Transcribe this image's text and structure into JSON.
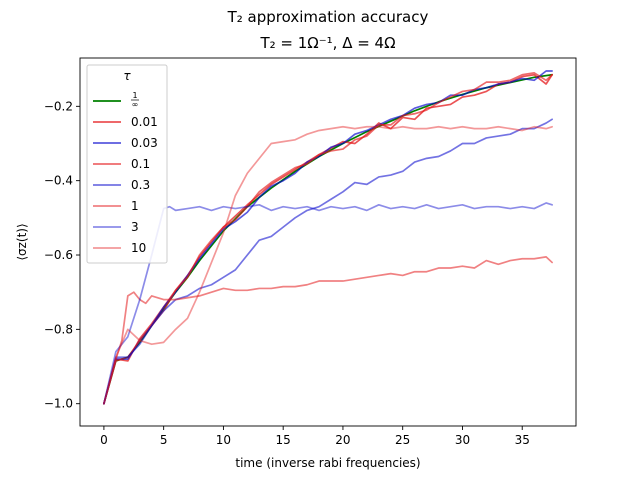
{
  "chart_data": {
    "type": "line",
    "title_line1": "T₂ approximation accuracy",
    "title_line2": "T₂ = 1Ω⁻¹, Δ = 4Ω",
    "xlabel": "time (inverse rabi frequencies)",
    "ylabel": "⟨σz(t)⟩",
    "xlim": [
      -2,
      39.5
    ],
    "ylim": [
      -1.06,
      -0.07
    ],
    "xticks": [
      0,
      5,
      10,
      15,
      20,
      25,
      30,
      35
    ],
    "yticks": [
      -1.0,
      -0.8,
      -0.6,
      -0.4,
      -0.2
    ],
    "ytick_labels": [
      "−1.0",
      "−0.8",
      "−0.6",
      "−0.4",
      "−0.2"
    ],
    "grid": false,
    "legend": {
      "title": "τ",
      "placement": "upper-left"
    },
    "series": [
      {
        "name": "1/∞",
        "color": "#008000",
        "opacity": 1.0,
        "x": [
          0,
          1,
          2,
          3,
          4,
          5,
          6,
          7,
          8,
          9,
          10,
          12,
          14,
          16,
          18,
          20,
          22,
          24,
          26,
          28,
          30,
          32,
          34,
          36,
          37.5
        ],
        "y": [
          -1.0,
          -0.885,
          -0.875,
          -0.835,
          -0.79,
          -0.745,
          -0.7,
          -0.66,
          -0.615,
          -0.575,
          -0.535,
          -0.47,
          -0.42,
          -0.375,
          -0.335,
          -0.3,
          -0.268,
          -0.24,
          -0.212,
          -0.188,
          -0.168,
          -0.15,
          -0.136,
          -0.122,
          -0.115
        ]
      },
      {
        "name": "0.01",
        "color": "#e41a1c",
        "opacity": 0.75,
        "x": [
          0,
          1,
          2,
          3,
          4,
          5,
          6,
          7,
          8,
          9,
          10,
          12,
          14,
          16,
          18,
          20,
          21,
          22,
          23,
          24,
          25,
          26,
          27,
          28,
          29,
          30,
          31,
          32,
          33,
          34,
          35,
          36,
          37,
          37.5
        ],
        "y": [
          -1.0,
          -0.88,
          -0.885,
          -0.825,
          -0.785,
          -0.74,
          -0.695,
          -0.655,
          -0.605,
          -0.565,
          -0.525,
          -0.465,
          -0.41,
          -0.37,
          -0.33,
          -0.295,
          -0.3,
          -0.275,
          -0.245,
          -0.26,
          -0.23,
          -0.235,
          -0.205,
          -0.2,
          -0.195,
          -0.175,
          -0.17,
          -0.16,
          -0.14,
          -0.135,
          -0.12,
          -0.115,
          -0.14,
          -0.115
        ]
      },
      {
        "name": "0.03",
        "color": "#0000cc",
        "opacity": 0.65,
        "x": [
          0,
          1,
          2,
          3,
          4,
          5,
          6,
          7,
          8,
          9,
          10,
          11,
          12,
          13,
          14,
          15,
          16,
          17,
          18,
          19,
          20,
          21,
          22,
          23,
          24,
          25,
          26,
          27,
          28,
          29,
          30,
          31,
          32,
          33,
          34,
          35,
          36,
          37,
          37.5
        ],
        "y": [
          -1.0,
          -0.88,
          -0.88,
          -0.83,
          -0.79,
          -0.74,
          -0.7,
          -0.655,
          -0.61,
          -0.57,
          -0.53,
          -0.51,
          -0.485,
          -0.445,
          -0.415,
          -0.4,
          -0.38,
          -0.35,
          -0.335,
          -0.31,
          -0.3,
          -0.275,
          -0.265,
          -0.25,
          -0.235,
          -0.225,
          -0.205,
          -0.195,
          -0.19,
          -0.17,
          -0.17,
          -0.155,
          -0.15,
          -0.14,
          -0.135,
          -0.125,
          -0.13,
          -0.105,
          -0.105
        ]
      },
      {
        "name": "0.1",
        "color": "#e41a1c",
        "opacity": 0.65,
        "x": [
          0,
          1,
          2,
          3,
          4,
          5,
          6,
          7,
          8,
          9,
          10,
          11,
          12,
          13,
          14,
          15,
          16,
          17,
          18,
          19,
          20,
          21,
          22,
          23,
          24,
          25,
          26,
          27,
          28,
          29,
          30,
          31,
          32,
          33,
          34,
          35,
          36,
          37,
          37.5
        ],
        "y": [
          -1.0,
          -0.885,
          -0.875,
          -0.83,
          -0.79,
          -0.75,
          -0.695,
          -0.66,
          -0.6,
          -0.56,
          -0.525,
          -0.505,
          -0.47,
          -0.43,
          -0.405,
          -0.385,
          -0.365,
          -0.355,
          -0.33,
          -0.32,
          -0.315,
          -0.29,
          -0.28,
          -0.25,
          -0.25,
          -0.225,
          -0.22,
          -0.21,
          -0.19,
          -0.175,
          -0.16,
          -0.155,
          -0.135,
          -0.135,
          -0.13,
          -0.115,
          -0.11,
          -0.13,
          -0.115
        ]
      },
      {
        "name": "0.3",
        "color": "#0000cc",
        "opacity": 0.55,
        "x": [
          0,
          1,
          2,
          3,
          4,
          5,
          6,
          7,
          8,
          9,
          10,
          11,
          12,
          13,
          14,
          15,
          16,
          17,
          18,
          19,
          20,
          21,
          22,
          23,
          24,
          25,
          26,
          27,
          28,
          29,
          30,
          31,
          32,
          33,
          34,
          35,
          36,
          37,
          37.5
        ],
        "y": [
          -1.0,
          -0.875,
          -0.875,
          -0.84,
          -0.79,
          -0.75,
          -0.72,
          -0.71,
          -0.69,
          -0.68,
          -0.66,
          -0.64,
          -0.6,
          -0.56,
          -0.55,
          -0.525,
          -0.5,
          -0.48,
          -0.47,
          -0.45,
          -0.43,
          -0.405,
          -0.41,
          -0.39,
          -0.385,
          -0.375,
          -0.35,
          -0.34,
          -0.335,
          -0.32,
          -0.3,
          -0.3,
          -0.285,
          -0.28,
          -0.275,
          -0.26,
          -0.26,
          -0.245,
          -0.235
        ]
      },
      {
        "name": "1",
        "color": "#e41a1c",
        "opacity": 0.55,
        "x": [
          0,
          1,
          1.5,
          2,
          2.5,
          3,
          3.5,
          4,
          5,
          6,
          7,
          8,
          9,
          10,
          11,
          12,
          13,
          14,
          15,
          16,
          17,
          18,
          19,
          20,
          21,
          22,
          23,
          24,
          25,
          26,
          27,
          28,
          29,
          30,
          31,
          32,
          33,
          34,
          35,
          36,
          37,
          37.5
        ],
        "y": [
          -1.0,
          -0.88,
          -0.83,
          -0.71,
          -0.7,
          -0.72,
          -0.73,
          -0.71,
          -0.72,
          -0.72,
          -0.715,
          -0.71,
          -0.7,
          -0.69,
          -0.695,
          -0.695,
          -0.69,
          -0.69,
          -0.685,
          -0.685,
          -0.68,
          -0.67,
          -0.67,
          -0.67,
          -0.665,
          -0.66,
          -0.655,
          -0.65,
          -0.655,
          -0.645,
          -0.645,
          -0.635,
          -0.635,
          -0.63,
          -0.635,
          -0.615,
          -0.625,
          -0.615,
          -0.61,
          -0.61,
          -0.605,
          -0.62
        ]
      },
      {
        "name": "3",
        "color": "#0000cc",
        "opacity": 0.45,
        "x": [
          0,
          1,
          2,
          3,
          4,
          5,
          5.5,
          6,
          7,
          8,
          9,
          10,
          11,
          12,
          13,
          14,
          15,
          16,
          17,
          18,
          19,
          20,
          21,
          22,
          23,
          24,
          25,
          26,
          27,
          28,
          29,
          30,
          31,
          32,
          33,
          34,
          35,
          36,
          37,
          37.5
        ],
        "y": [
          -1.0,
          -0.86,
          -0.82,
          -0.72,
          -0.6,
          -0.475,
          -0.47,
          -0.48,
          -0.475,
          -0.47,
          -0.48,
          -0.47,
          -0.475,
          -0.47,
          -0.465,
          -0.48,
          -0.47,
          -0.475,
          -0.47,
          -0.48,
          -0.47,
          -0.475,
          -0.47,
          -0.48,
          -0.465,
          -0.475,
          -0.47,
          -0.475,
          -0.465,
          -0.475,
          -0.47,
          -0.465,
          -0.475,
          -0.47,
          -0.47,
          -0.475,
          -0.47,
          -0.475,
          -0.46,
          -0.465
        ]
      },
      {
        "name": "10",
        "color": "#e41a1c",
        "opacity": 0.45,
        "x": [
          0,
          1,
          2,
          3,
          4,
          5,
          6,
          7,
          8,
          9,
          10,
          11,
          12,
          13,
          14,
          15,
          16,
          17,
          18,
          19,
          20,
          21,
          22,
          23,
          24,
          25,
          26,
          27,
          28,
          29,
          30,
          31,
          32,
          33,
          34,
          35,
          36,
          37,
          37.5
        ],
        "y": [
          -1.0,
          -0.875,
          -0.8,
          -0.83,
          -0.84,
          -0.835,
          -0.8,
          -0.77,
          -0.7,
          -0.62,
          -0.54,
          -0.44,
          -0.38,
          -0.34,
          -0.3,
          -0.295,
          -0.29,
          -0.275,
          -0.265,
          -0.26,
          -0.255,
          -0.26,
          -0.255,
          -0.255,
          -0.26,
          -0.255,
          -0.26,
          -0.26,
          -0.255,
          -0.26,
          -0.255,
          -0.26,
          -0.26,
          -0.255,
          -0.26,
          -0.265,
          -0.255,
          -0.26,
          -0.255
        ]
      }
    ]
  }
}
